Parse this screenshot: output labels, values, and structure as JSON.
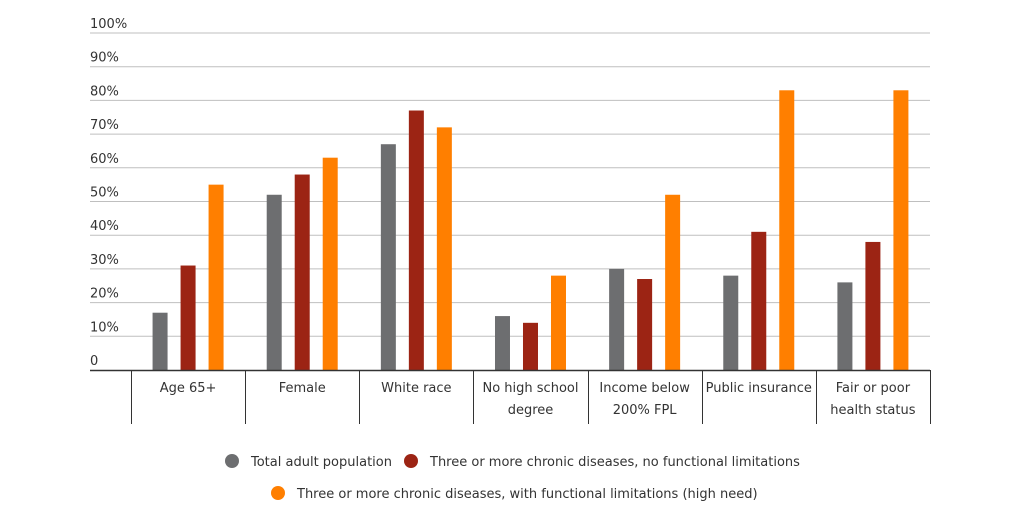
{
  "chart_data": {
    "type": "bar",
    "title": "",
    "xlabel": "",
    "ylabel": "",
    "ylim": [
      0,
      100
    ],
    "y_ticks": [
      "0",
      "10%",
      "20%",
      "30%",
      "40%",
      "50%",
      "60%",
      "70%",
      "80%",
      "90%",
      "100%"
    ],
    "grid": true,
    "legend_position": "bottom",
    "categories": [
      [
        "Age 65+"
      ],
      [
        "Female"
      ],
      [
        "White race"
      ],
      [
        "No high school",
        "degree"
      ],
      [
        "Income below",
        "200% FPL"
      ],
      [
        "Public insurance"
      ],
      [
        "Fair or poor",
        "health status"
      ]
    ],
    "series": [
      {
        "name": "Total adult population",
        "color": "#6d6e70",
        "values": [
          17,
          52,
          67,
          16,
          30,
          28,
          26
        ]
      },
      {
        "name": "Three or more chronic diseases, no functional limitations",
        "color": "#9c2414",
        "values": [
          31,
          58,
          77,
          14,
          27,
          41,
          38
        ]
      },
      {
        "name": "Three or more chronic diseases, with functional limitations (high need)",
        "color": "#ff7f00",
        "values": [
          55,
          63,
          72,
          28,
          52,
          83,
          83
        ]
      }
    ]
  }
}
